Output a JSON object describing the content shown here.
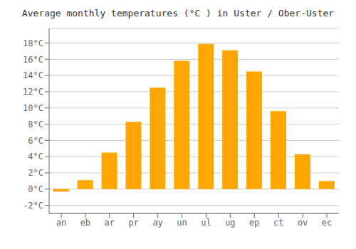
{
  "chart_data": {
    "type": "bar",
    "title": "Average monthly temperatures (°C ) in Uster / Ober-Uster",
    "categories": [
      "an",
      "eb",
      "ar",
      "pr",
      "ay",
      "un",
      "ul",
      "ug",
      "ep",
      "ct",
      "ov",
      "ec"
    ],
    "values": [
      -0.3,
      1.1,
      4.5,
      8.3,
      12.5,
      15.8,
      17.9,
      17.1,
      14.5,
      9.6,
      4.3,
      1.0
    ],
    "color": "#FFA500",
    "ylim": [
      -3.0,
      19.8
    ],
    "yticks": [
      {
        "value": -2,
        "label": "-2°C"
      },
      {
        "value": 0,
        "label": "0°C"
      },
      {
        "value": 2,
        "label": "2°C"
      },
      {
        "value": 4,
        "label": "4°C"
      },
      {
        "value": 6,
        "label": "6°C"
      },
      {
        "value": 8,
        "label": "8°C"
      },
      {
        "value": 10,
        "label": "10°C"
      },
      {
        "value": 12,
        "label": "12°C"
      },
      {
        "value": 14,
        "label": "14°C"
      },
      {
        "value": 16,
        "label": "16°C"
      },
      {
        "value": 18,
        "label": "18°C"
      }
    ],
    "grid": true
  }
}
